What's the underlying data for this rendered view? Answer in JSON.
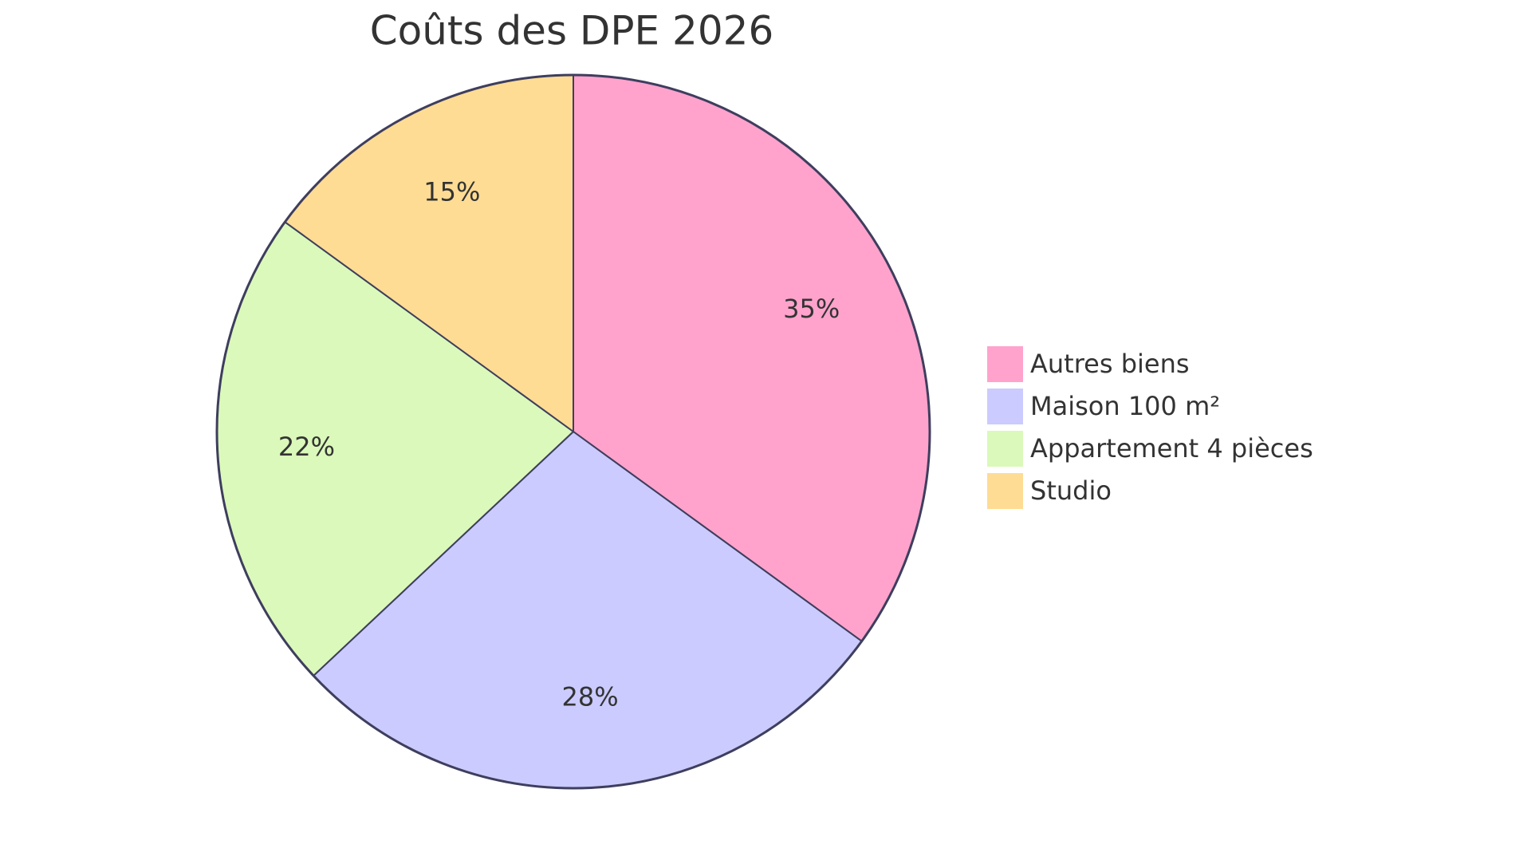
{
  "chart_data": {
    "type": "pie",
    "title": "Coûts des DPE 2026",
    "series": [
      {
        "name": "Autres biens",
        "color": "#ffa3cc"
      },
      {
        "name": "Maison 100 m²",
        "color": "#cbcbff"
      },
      {
        "name": "Appartement 4 pièces",
        "color": "#dbf9ba"
      },
      {
        "name": "Studio",
        "color": "#fedc94"
      }
    ],
    "values": [
      35,
      28,
      22,
      15
    ],
    "value_labels": [
      "35%",
      "28%",
      "22%",
      "15%"
    ],
    "legend": "right"
  }
}
